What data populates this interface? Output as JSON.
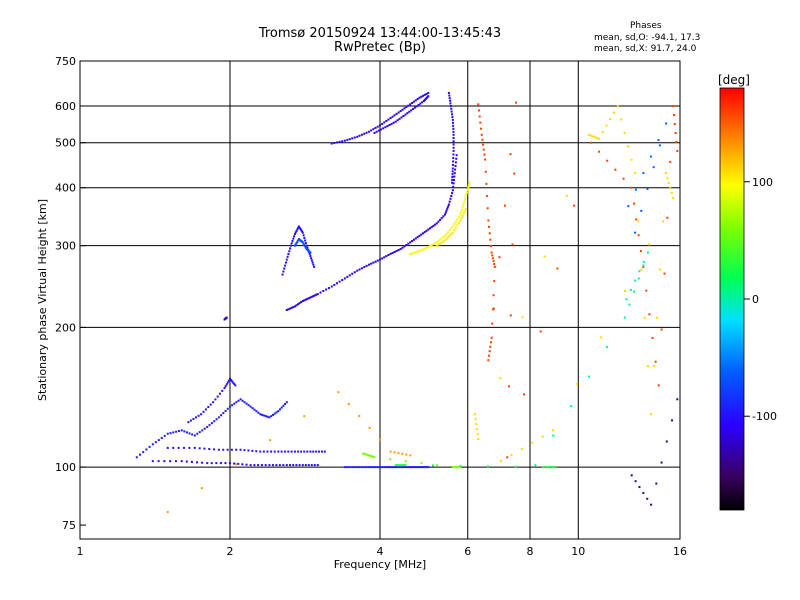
{
  "chart_data": {
    "type": "scatter",
    "title": "Tromsø 20150924 13:44:00-13:45:43",
    "subtitle": "RwPretec (Bp)",
    "xlabel": "Frequency [MHz]",
    "ylabel": "Stationary phase Virtual Height [km]",
    "x_scale": "log",
    "y_scale": "log",
    "xlim": [
      1,
      16
    ],
    "ylim": [
      70,
      750
    ],
    "x_ticks": [
      1,
      2,
      4,
      6,
      8,
      10,
      16
    ],
    "x_tick_labels": [
      "1",
      "2",
      "4",
      "6",
      "8",
      "10",
      "16"
    ],
    "y_ticks": [
      75,
      100,
      200,
      300,
      400,
      500,
      600,
      750
    ],
    "y_tick_labels": [
      "75",
      "100",
      "200",
      "300",
      "400",
      "500",
      "600",
      "750"
    ],
    "grid": true,
    "phases": {
      "heading": "Phases",
      "o_line": "mean, sd,O: -94.1, 17.3",
      "x_line": "mean, sd,X:  91.7, 24.0"
    },
    "colorbar": {
      "label": "[deg]",
      "range": [
        -180,
        180
      ],
      "ticks": [
        100,
        0,
        -100
      ],
      "tick_labels": [
        "100",
        "0",
        "-100"
      ],
      "colormap": "rainbow",
      "position": "right"
    },
    "traces": [
      {
        "name_hidden": "",
        "phase": -110,
        "points": [
          [
            3.2,
            498
          ],
          [
            3.4,
            505
          ],
          [
            3.6,
            515
          ],
          [
            3.8,
            528
          ],
          [
            4.0,
            545
          ],
          [
            4.2,
            565
          ],
          [
            4.4,
            585
          ],
          [
            4.6,
            605
          ],
          [
            4.8,
            625
          ],
          [
            5.0,
            640
          ]
        ]
      },
      {
        "phase": -110,
        "points": [
          [
            3.9,
            525
          ],
          [
            4.1,
            540
          ],
          [
            4.3,
            555
          ],
          [
            4.5,
            575
          ],
          [
            4.7,
            595
          ],
          [
            4.9,
            615
          ],
          [
            5.0,
            630
          ]
        ]
      },
      {
        "phase": -105,
        "points": [
          [
            5.5,
            640
          ],
          [
            5.55,
            600
          ],
          [
            5.6,
            560
          ],
          [
            5.62,
            520
          ],
          [
            5.62,
            480
          ],
          [
            5.6,
            440
          ],
          [
            5.58,
            410
          ]
        ]
      },
      {
        "phase": -110,
        "points": [
          [
            2.6,
            218
          ],
          [
            2.7,
            222
          ],
          [
            2.8,
            228
          ],
          [
            2.9,
            232
          ],
          [
            3.0,
            236
          ],
          [
            3.2,
            245
          ],
          [
            3.4,
            255
          ],
          [
            3.6,
            265
          ],
          [
            3.8,
            273
          ],
          [
            4.0,
            280
          ],
          [
            4.2,
            288
          ],
          [
            4.4,
            295
          ],
          [
            4.6,
            305
          ],
          [
            4.8,
            315
          ],
          [
            5.0,
            325
          ],
          [
            5.2,
            335
          ],
          [
            5.4,
            350
          ],
          [
            5.5,
            368
          ],
          [
            5.6,
            395
          ],
          [
            5.65,
            430
          ],
          [
            5.7,
            470
          ]
        ]
      },
      {
        "phase": -100,
        "points": [
          [
            2.55,
            260
          ],
          [
            2.6,
            280
          ],
          [
            2.65,
            300
          ],
          [
            2.7,
            318
          ],
          [
            2.75,
            330
          ],
          [
            2.8,
            320
          ],
          [
            2.85,
            300
          ],
          [
            2.9,
            285
          ],
          [
            2.95,
            270
          ]
        ]
      },
      {
        "phase": -70,
        "points": [
          [
            2.7,
            300
          ],
          [
            2.75,
            310
          ],
          [
            2.8,
            305
          ],
          [
            2.85,
            295
          ],
          [
            2.9,
            290
          ]
        ]
      },
      {
        "phase": 95,
        "points": [
          [
            4.6,
            288
          ],
          [
            4.8,
            292
          ],
          [
            5.0,
            298
          ],
          [
            5.2,
            305
          ],
          [
            5.4,
            315
          ],
          [
            5.6,
            330
          ],
          [
            5.8,
            350
          ],
          [
            5.9,
            372
          ],
          [
            6.0,
            395
          ],
          [
            6.05,
            410
          ]
        ]
      },
      {
        "phase": 105,
        "points": [
          [
            5.2,
            300
          ],
          [
            5.4,
            308
          ],
          [
            5.6,
            320
          ],
          [
            5.8,
            340
          ],
          [
            5.95,
            360
          ]
        ]
      },
      {
        "phase": -95,
        "points": [
          [
            1.3,
            105
          ],
          [
            1.4,
            112
          ],
          [
            1.5,
            118
          ],
          [
            1.6,
            120
          ],
          [
            1.7,
            117
          ],
          [
            1.8,
            122
          ],
          [
            1.9,
            128
          ],
          [
            2.0,
            135
          ],
          [
            2.1,
            140
          ],
          [
            2.2,
            135
          ],
          [
            2.3,
            130
          ],
          [
            2.4,
            128
          ],
          [
            2.5,
            132
          ],
          [
            2.6,
            138
          ]
        ]
      },
      {
        "phase": -100,
        "points": [
          [
            1.65,
            125
          ],
          [
            1.75,
            130
          ],
          [
            1.85,
            138
          ],
          [
            1.95,
            148
          ],
          [
            2.0,
            155
          ],
          [
            2.05,
            150
          ]
        ]
      },
      {
        "phase": -120,
        "points": [
          [
            1.95,
            208
          ],
          [
            1.97,
            210
          ]
        ]
      },
      {
        "phase": -100,
        "points": [
          [
            1.5,
            110
          ],
          [
            1.7,
            110
          ],
          [
            1.9,
            109
          ],
          [
            2.1,
            109
          ],
          [
            2.3,
            108
          ],
          [
            2.5,
            108
          ],
          [
            2.7,
            108
          ],
          [
            2.9,
            108
          ],
          [
            3.1,
            108
          ]
        ]
      },
      {
        "phase": -105,
        "points": [
          [
            1.4,
            103
          ],
          [
            1.6,
            103
          ],
          [
            1.8,
            102
          ],
          [
            2.0,
            102
          ],
          [
            2.2,
            101
          ],
          [
            2.4,
            101
          ],
          [
            2.6,
            101
          ],
          [
            2.8,
            101
          ],
          [
            3.0,
            101
          ]
        ]
      },
      {
        "phase": -95,
        "points": [
          [
            3.4,
            100
          ],
          [
            3.6,
            100
          ],
          [
            3.8,
            100
          ],
          [
            4.0,
            100
          ],
          [
            4.2,
            100
          ],
          [
            4.4,
            100
          ],
          [
            4.6,
            100
          ],
          [
            4.8,
            100
          ],
          [
            5.0,
            100
          ]
        ]
      },
      {
        "phase": 60,
        "points": [
          [
            3.7,
            107
          ],
          [
            3.8,
            106
          ],
          [
            3.9,
            105
          ],
          [
            5.6,
            100
          ],
          [
            5.8,
            100
          ]
        ]
      },
      {
        "phase": 30,
        "points": [
          [
            4.3,
            101
          ],
          [
            4.5,
            101
          ],
          [
            8.5,
            100
          ],
          [
            9.0,
            100
          ]
        ]
      },
      {
        "phase": 160,
        "points": [
          [
            6.3,
            605
          ],
          [
            6.4,
            520
          ],
          [
            6.5,
            460
          ],
          [
            6.6,
            340
          ],
          [
            6.7,
            290
          ],
          [
            6.8,
            270
          ],
          [
            6.7,
            190
          ],
          [
            6.6,
            170
          ],
          [
            7.5,
            610
          ],
          [
            7.2,
            105
          ],
          [
            10.6,
            500
          ],
          [
            12.8,
            400
          ],
          [
            13.5,
            270
          ],
          [
            14.5,
            150
          ],
          [
            15.5,
            600
          ],
          [
            15.8,
            480
          ]
        ]
      },
      {
        "phase": 110,
        "points": [
          [
            6.2,
            130
          ],
          [
            6.3,
            115
          ],
          [
            10.5,
            520
          ],
          [
            11.0,
            510
          ],
          [
            12.0,
            600
          ],
          [
            13.0,
            430
          ],
          [
            14.0,
            130
          ],
          [
            15.0,
            430
          ],
          [
            15.5,
            380
          ],
          [
            8.9,
            120
          ],
          [
            7.0,
            103
          ]
        ]
      },
      {
        "phase": 0,
        "points": [
          [
            12.5,
            230
          ],
          [
            13.8,
            290
          ],
          [
            12.4,
            210
          ],
          [
            8.2,
            101
          ]
        ]
      },
      {
        "phase": -60,
        "points": [
          [
            12.6,
            365
          ],
          [
            15.0,
            550
          ],
          [
            13.0,
            320
          ]
        ]
      },
      {
        "phase": -140,
        "points": [
          [
            12.8,
            96
          ],
          [
            14.0,
            83
          ],
          [
            15.8,
            140
          ]
        ]
      },
      {
        "phase": 130,
        "points": [
          [
            1.5,
            80
          ],
          [
            3.3,
            145
          ],
          [
            4.2,
            108
          ],
          [
            4.6,
            106
          ]
        ]
      }
    ]
  }
}
